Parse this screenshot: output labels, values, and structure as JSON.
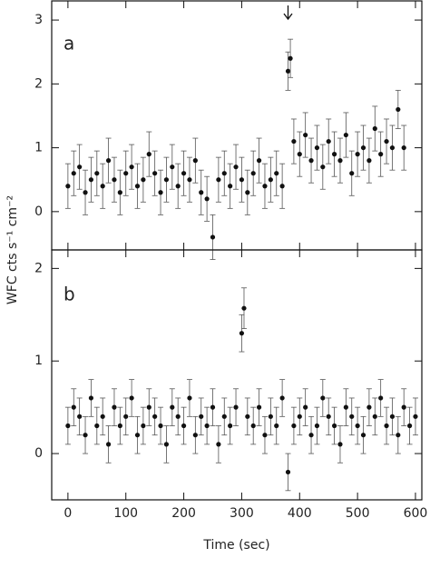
{
  "chart_data": [
    {
      "type": "scatter",
      "label": "a",
      "ylabel": "WFC cts s⁻¹ cm⁻²",
      "color": "#111",
      "x": [
        0,
        10,
        20,
        30,
        40,
        50,
        60,
        70,
        80,
        90,
        100,
        110,
        120,
        130,
        140,
        150,
        160,
        170,
        180,
        190,
        200,
        210,
        220,
        230,
        240,
        250,
        260,
        270,
        280,
        290,
        300,
        310,
        320,
        330,
        340,
        350,
        360,
        370,
        380,
        384,
        390,
        400,
        410,
        420,
        430,
        440,
        450,
        460,
        470,
        480,
        490,
        500,
        510,
        520,
        530,
        540,
        550,
        560,
        570,
        580
      ],
      "values": [
        0.4,
        0.6,
        0.7,
        0.3,
        0.5,
        0.6,
        0.4,
        0.8,
        0.5,
        0.3,
        0.6,
        0.7,
        0.4,
        0.5,
        0.9,
        0.6,
        0.3,
        0.5,
        0.7,
        0.4,
        0.6,
        0.5,
        0.8,
        0.3,
        0.2,
        -0.4,
        0.5,
        0.6,
        0.4,
        0.7,
        0.5,
        0.3,
        0.6,
        0.8,
        0.4,
        0.5,
        0.6,
        0.4,
        2.2,
        2.4,
        1.1,
        0.9,
        1.2,
        0.8,
        1.0,
        0.7,
        1.1,
        0.9,
        0.8,
        1.2,
        0.6,
        0.9,
        1.0,
        0.8,
        1.3,
        0.9,
        1.1,
        1.0,
        1.6,
        1.0
      ],
      "errors": [
        0.35,
        0.35,
        0.35,
        0.35,
        0.35,
        0.35,
        0.35,
        0.35,
        0.35,
        0.35,
        0.35,
        0.35,
        0.35,
        0.35,
        0.35,
        0.35,
        0.35,
        0.35,
        0.35,
        0.35,
        0.35,
        0.35,
        0.35,
        0.35,
        0.35,
        0.35,
        0.35,
        0.35,
        0.35,
        0.35,
        0.35,
        0.35,
        0.35,
        0.35,
        0.35,
        0.35,
        0.35,
        0.35,
        0.3,
        0.3,
        0.35,
        0.35,
        0.35,
        0.35,
        0.35,
        0.35,
        0.35,
        0.35,
        0.35,
        0.35,
        0.35,
        0.35,
        0.35,
        0.35,
        0.35,
        0.35,
        0.35,
        0.35,
        0.3,
        0.35
      ],
      "xlim": [
        -28,
        611
      ],
      "xticks": [
        0,
        100,
        200,
        300,
        400,
        500,
        600
      ],
      "ylim": [
        -0.6,
        3.3
      ],
      "yticks": [
        0,
        1,
        2,
        3
      ]
    },
    {
      "type": "scatter",
      "label": "b",
      "xlabel": "Time (sec)",
      "color": "#111",
      "x": [
        0,
        10,
        20,
        30,
        40,
        50,
        60,
        70,
        80,
        90,
        100,
        110,
        120,
        130,
        140,
        150,
        160,
        170,
        180,
        190,
        200,
        210,
        220,
        230,
        240,
        250,
        260,
        270,
        280,
        290,
        300,
        304,
        310,
        320,
        330,
        340,
        350,
        360,
        370,
        380,
        390,
        400,
        410,
        420,
        430,
        440,
        450,
        460,
        470,
        480,
        490,
        500,
        510,
        520,
        530,
        540,
        550,
        560,
        570,
        580,
        590,
        600
      ],
      "values": [
        0.3,
        0.5,
        0.4,
        0.2,
        0.6,
        0.3,
        0.4,
        0.1,
        0.5,
        0.3,
        0.4,
        0.6,
        0.2,
        0.3,
        0.5,
        0.4,
        0.3,
        0.1,
        0.5,
        0.4,
        0.3,
        0.6,
        0.2,
        0.4,
        0.3,
        0.5,
        0.1,
        0.4,
        0.3,
        0.5,
        1.3,
        1.57,
        0.4,
        0.3,
        0.5,
        0.2,
        0.4,
        0.3,
        0.6,
        -0.2,
        0.3,
        0.4,
        0.5,
        0.2,
        0.3,
        0.6,
        0.4,
        0.3,
        0.1,
        0.5,
        0.4,
        0.3,
        0.2,
        0.5,
        0.4,
        0.6,
        0.3,
        0.4,
        0.2,
        0.5,
        0.3,
        0.4
      ],
      "errors": [
        0.2,
        0.2,
        0.2,
        0.2,
        0.2,
        0.2,
        0.2,
        0.2,
        0.2,
        0.2,
        0.2,
        0.2,
        0.2,
        0.2,
        0.2,
        0.2,
        0.2,
        0.2,
        0.2,
        0.2,
        0.2,
        0.2,
        0.2,
        0.2,
        0.2,
        0.2,
        0.2,
        0.2,
        0.2,
        0.2,
        0.2,
        0.22,
        0.2,
        0.2,
        0.2,
        0.2,
        0.2,
        0.2,
        0.2,
        0.2,
        0.2,
        0.2,
        0.2,
        0.2,
        0.2,
        0.2,
        0.2,
        0.2,
        0.2,
        0.2,
        0.2,
        0.2,
        0.2,
        0.2,
        0.2,
        0.2,
        0.2,
        0.2,
        0.2,
        0.2,
        0.2,
        0.2
      ],
      "xlim": [
        -28,
        611
      ],
      "xticks": [
        0,
        100,
        200,
        300,
        400,
        500,
        600
      ],
      "ylim": [
        -0.5,
        2.2
      ],
      "yticks": [
        0,
        1,
        2
      ]
    }
  ]
}
